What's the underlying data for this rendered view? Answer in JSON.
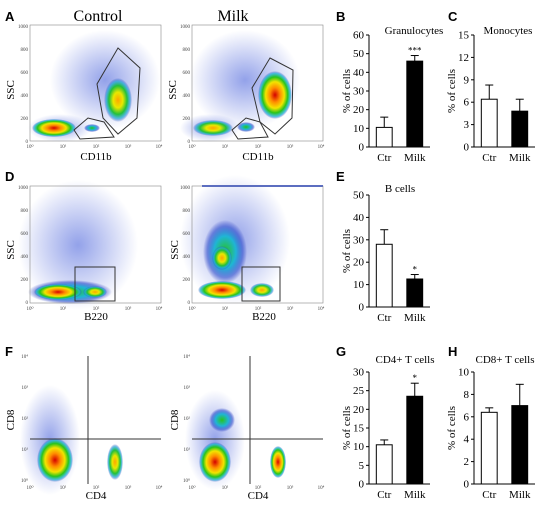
{
  "figure": {
    "panel_letters": [
      "A",
      "B",
      "C",
      "D",
      "E",
      "F",
      "G",
      "H"
    ],
    "column_titles": [
      "Control",
      "Milk"
    ],
    "flow_plots": [
      {
        "panel": "A",
        "group": "Control",
        "xlabel": "CD11b",
        "ylabel": "SSC",
        "x_ticks": [
          "10⁰",
          "10¹",
          "10²",
          "10³",
          "10⁴"
        ],
        "y_ticks": [
          "1000",
          "800",
          "600",
          "400",
          "200",
          "0"
        ]
      },
      {
        "panel": "A",
        "group": "Milk",
        "xlabel": "CD11b",
        "ylabel": "SSC",
        "x_ticks": [
          "10⁰",
          "10¹",
          "10²",
          "10³",
          "10⁴"
        ],
        "y_ticks": [
          "1000",
          "800",
          "600",
          "400",
          "200",
          "0"
        ]
      },
      {
        "panel": "D",
        "group": "Control",
        "xlabel": "B220",
        "ylabel": "SSC",
        "x_ticks": [
          "10⁰",
          "10¹",
          "10²",
          "10³",
          "10⁴"
        ],
        "y_ticks": [
          "1000",
          "800",
          "600",
          "400",
          "200",
          "0"
        ]
      },
      {
        "panel": "D",
        "group": "Milk",
        "xlabel": "B220",
        "ylabel": "SSC",
        "x_ticks": [
          "10⁰",
          "10¹",
          "10²",
          "10³",
          "10⁴"
        ],
        "y_ticks": [
          "1000",
          "800",
          "600",
          "400",
          "200",
          "0"
        ]
      },
      {
        "panel": "F",
        "group": "Control",
        "xlabel": "CD4",
        "ylabel": "CD8",
        "x_ticks": [
          "10⁰",
          "10¹",
          "10²",
          "10³",
          "10⁴"
        ],
        "y_ticks": [
          "10⁴",
          "10³",
          "10²",
          "10¹",
          "10⁰"
        ]
      },
      {
        "panel": "F",
        "group": "Milk",
        "xlabel": "CD4",
        "ylabel": "CD8",
        "x_ticks": [
          "10⁰",
          "10¹",
          "10²",
          "10³",
          "10⁴"
        ],
        "y_ticks": [
          "10⁴",
          "10³",
          "10²",
          "10¹",
          "10⁰"
        ]
      }
    ]
  },
  "chart_data": [
    {
      "panel": "B",
      "type": "bar",
      "title": "Granulocytes",
      "ylabel": "% of cells",
      "categories": [
        "Ctr",
        "Milk"
      ],
      "values": [
        10.5,
        46
      ],
      "errors": [
        5.5,
        3
      ],
      "ylim": [
        0,
        60
      ],
      "yticks": [
        0,
        10,
        20,
        30,
        40,
        50,
        60
      ],
      "fills": [
        "#ffffff",
        "#000000"
      ],
      "significance": [
        "",
        "***"
      ]
    },
    {
      "panel": "C",
      "type": "bar",
      "title": "Monocytes",
      "ylabel": "% of cells",
      "categories": [
        "Ctr",
        "Milk"
      ],
      "values": [
        6.4,
        4.8
      ],
      "errors": [
        1.9,
        1.6
      ],
      "ylim": [
        0,
        15
      ],
      "yticks": [
        0,
        3,
        6,
        9,
        12,
        15
      ],
      "fills": [
        "#ffffff",
        "#000000"
      ],
      "significance": [
        "",
        ""
      ]
    },
    {
      "panel": "E",
      "type": "bar",
      "title": "B cells",
      "ylabel": "% of cells",
      "categories": [
        "Ctr",
        "Milk"
      ],
      "values": [
        28,
        12.5
      ],
      "errors": [
        6.5,
        2
      ],
      "ylim": [
        0,
        50
      ],
      "yticks": [
        0,
        10,
        20,
        30,
        40,
        50
      ],
      "fills": [
        "#ffffff",
        "#000000"
      ],
      "significance": [
        "",
        "*"
      ]
    },
    {
      "panel": "G",
      "type": "bar",
      "title": "CD4+ T cells",
      "ylabel": "% of cells",
      "categories": [
        "Ctr",
        "Milk"
      ],
      "values": [
        10.5,
        23.5
      ],
      "errors": [
        1.3,
        3.5
      ],
      "ylim": [
        0,
        30
      ],
      "yticks": [
        0,
        5,
        10,
        15,
        20,
        25,
        30
      ],
      "fills": [
        "#ffffff",
        "#000000"
      ],
      "significance": [
        "",
        "*"
      ]
    },
    {
      "panel": "H",
      "type": "bar",
      "title": "CD8+ T cells",
      "ylabel": "% of cells",
      "categories": [
        "Ctr",
        "Milk"
      ],
      "values": [
        6.4,
        7
      ],
      "errors": [
        0.4,
        1.9
      ],
      "ylim": [
        0,
        10
      ],
      "yticks": [
        0,
        2,
        4,
        6,
        8,
        10
      ],
      "fills": [
        "#ffffff",
        "#000000"
      ],
      "significance": [
        "",
        ""
      ]
    }
  ]
}
